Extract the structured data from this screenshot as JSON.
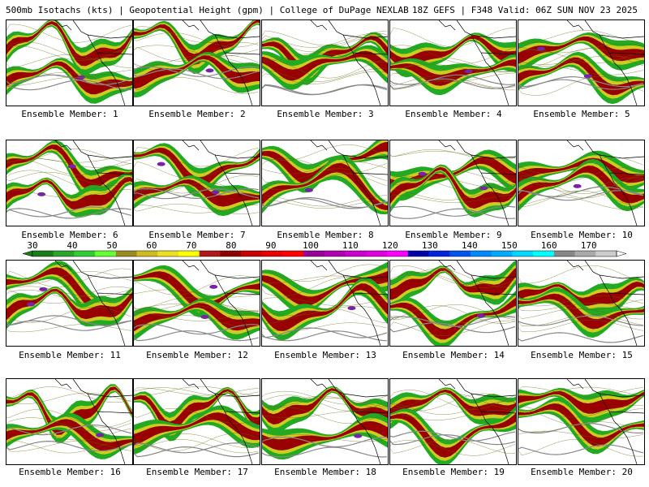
{
  "header": {
    "left_text": "500mb Isotachs (kts) | Geopotential Height (gpm) | College of DuPage NEXLAB",
    "right_text": "18Z GEFS | F348 Valid: 06Z SUN NOV 23 2025"
  },
  "panels": [
    {
      "label": "Ensemble Member: 1"
    },
    {
      "label": "Ensemble Member: 2"
    },
    {
      "label": "Ensemble Member: 3"
    },
    {
      "label": "Ensemble Member: 4"
    },
    {
      "label": "Ensemble Member: 5"
    },
    {
      "label": "Ensemble Member: 6"
    },
    {
      "label": "Ensemble Member: 7"
    },
    {
      "label": "Ensemble Member: 8"
    },
    {
      "label": "Ensemble Member: 9"
    },
    {
      "label": "Ensemble Member: 10"
    },
    {
      "label": "Ensemble Member: 11"
    },
    {
      "label": "Ensemble Member: 12"
    },
    {
      "label": "Ensemble Member: 13"
    },
    {
      "label": "Ensemble Member: 14"
    },
    {
      "label": "Ensemble Member: 15"
    },
    {
      "label": "Ensemble Member: 16"
    },
    {
      "label": "Ensemble Member: 17"
    },
    {
      "label": "Ensemble Member: 18"
    },
    {
      "label": "Ensemble Member: 19"
    },
    {
      "label": "Ensemble Member: 20"
    }
  ],
  "legend": {
    "ticks": [
      "30",
      "40",
      "50",
      "60",
      "70",
      "80",
      "90",
      "100",
      "110",
      "120",
      "130",
      "140",
      "150",
      "160",
      "170"
    ],
    "colors": [
      "#1a7d1a",
      "#2aa52a",
      "#33cc33",
      "#66ff33",
      "#9a8a22",
      "#ccbb22",
      "#eedd22",
      "#ffff00",
      "#b01818",
      "#8e0000",
      "#c80000",
      "#e80000",
      "#ff0000",
      "#990099",
      "#b000b0",
      "#cc00cc",
      "#e000e0",
      "#ff00ff",
      "#0000aa",
      "#0022dd",
      "#0055ee",
      "#0088ff",
      "#00aaff",
      "#00d8ff",
      "#00ffff",
      "#888888",
      "#aaaaaa",
      "#cccccc"
    ]
  },
  "shading": {
    "outer": "#22aa22",
    "mid": "#cccc22",
    "core": "#990000",
    "peak": "#7722aa",
    "height_contour": "#888888",
    "coastline": "#000000"
  }
}
